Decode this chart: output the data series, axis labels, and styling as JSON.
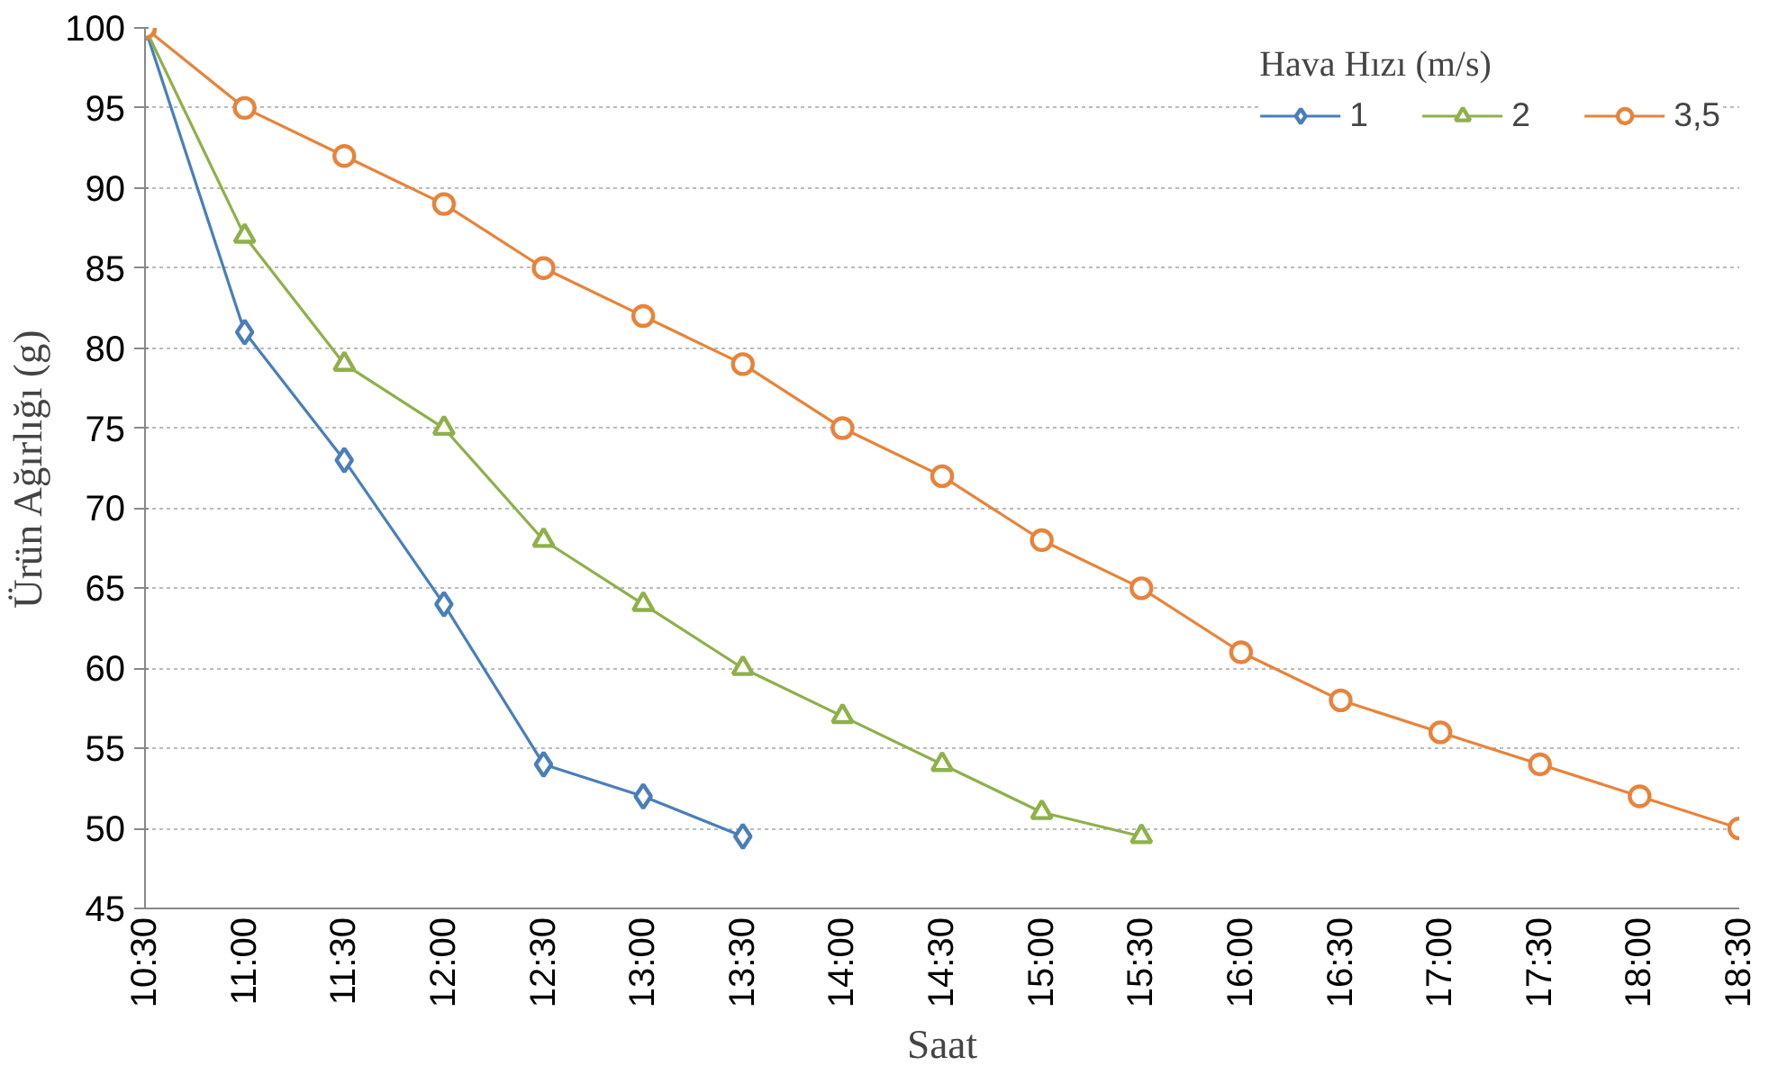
{
  "chart_data": {
    "type": "line",
    "xlabel": "Saat",
    "ylabel": "Ürün Ağırlığı (g)",
    "legend_title": "Hava Hızı (m/s)",
    "categories": [
      "10:30",
      "11:00",
      "11:30",
      "12:00",
      "12:30",
      "13:00",
      "13:30",
      "14:00",
      "14:30",
      "15:00",
      "15:30",
      "16:00",
      "16:30",
      "17:00",
      "17:30",
      "18:00",
      "18:30"
    ],
    "series": [
      {
        "name": "1",
        "color": "#4a7ebb",
        "marker": "diamond",
        "values": [
          100,
          81,
          73,
          64,
          54,
          52,
          49.5,
          null,
          null,
          null,
          null,
          null,
          null,
          null,
          null,
          null,
          null
        ]
      },
      {
        "name": "2",
        "color": "#8fb04a",
        "marker": "triangle",
        "values": [
          100,
          87,
          79,
          75,
          68,
          64,
          60,
          57,
          54,
          51,
          49.5,
          null,
          null,
          null,
          null,
          null,
          null
        ]
      },
      {
        "name": "3,5",
        "color": "#e8833a",
        "marker": "circle",
        "values": [
          100,
          95,
          92,
          89,
          85,
          82,
          79,
          75,
          72,
          68,
          65,
          61,
          58,
          56,
          54,
          52,
          50
        ]
      }
    ],
    "ylim": [
      45,
      100
    ],
    "yticks": [
      45,
      50,
      55,
      60,
      65,
      70,
      75,
      80,
      85,
      90,
      95,
      100
    ],
    "grid": "y",
    "legend": "top right",
    "line_style": "solid"
  }
}
